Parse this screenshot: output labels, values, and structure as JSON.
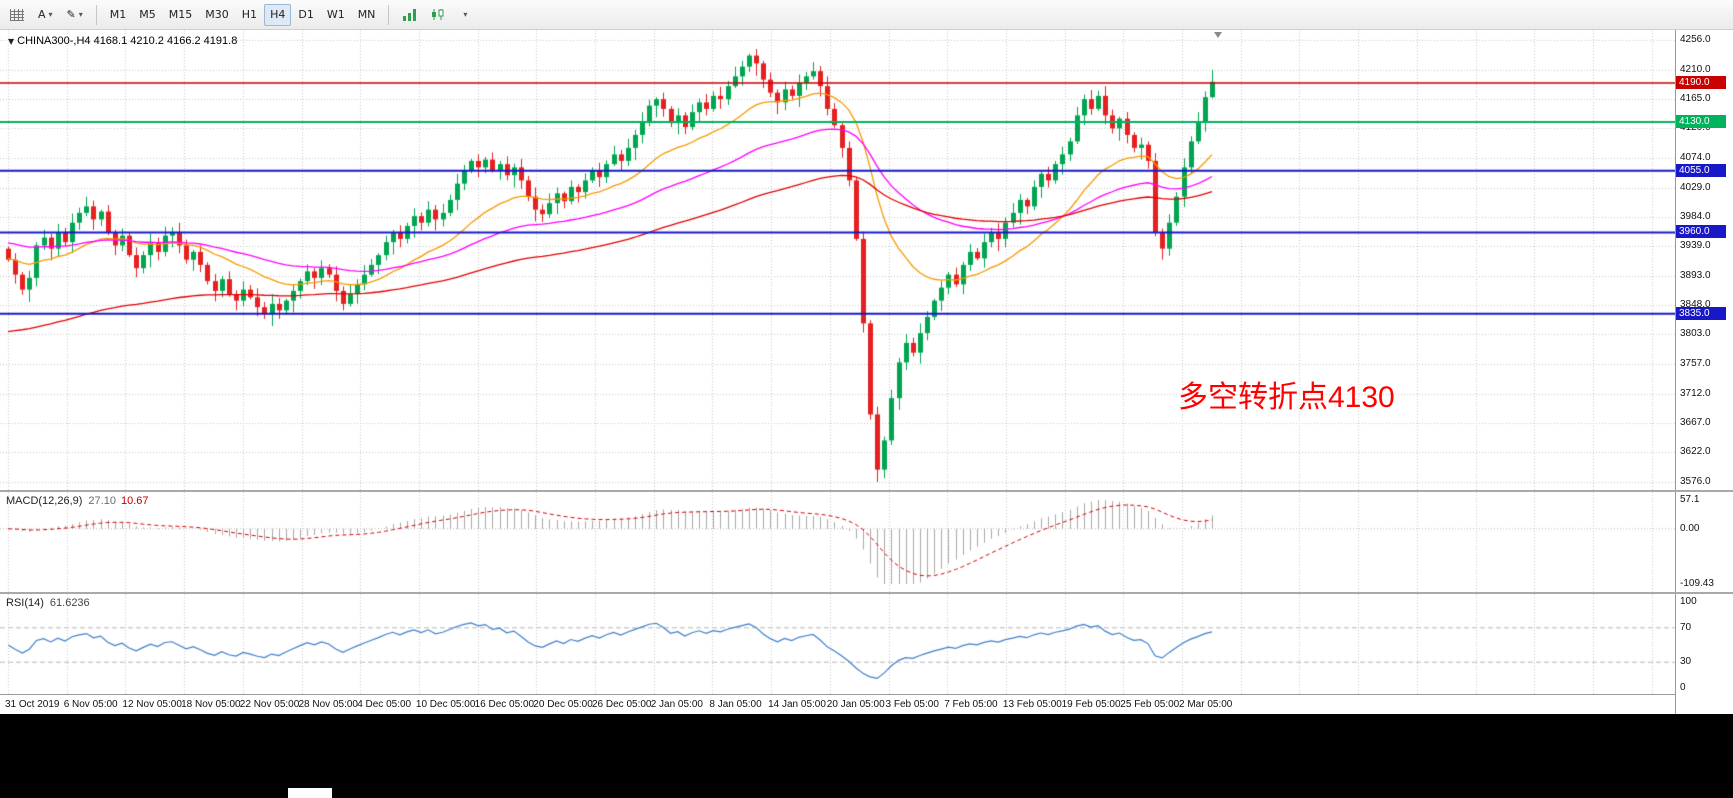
{
  "toolbar": {
    "text_tool_label": "A",
    "draw_tool_glyph": "✎",
    "timeframes": [
      "M1",
      "M5",
      "M15",
      "M30",
      "H1",
      "H4",
      "D1",
      "W1",
      "MN"
    ],
    "active_timeframe": "H4"
  },
  "chart_header": {
    "title": "CHINA300-,H4  4168.1 4210.2 4166.2 4191.8"
  },
  "annotation": {
    "text": "多空转折点4130",
    "color": "#ff0000"
  },
  "price_axis": {
    "ticks": [
      "4256.0",
      "4210.0",
      "4165.0",
      "4120.0",
      "4074.0",
      "4029.0",
      "3984.0",
      "3939.0",
      "3893.0",
      "3848.0",
      "3803.0",
      "3757.0",
      "3712.0",
      "3667.0",
      "3622.0",
      "3576.0"
    ]
  },
  "hlines": [
    {
      "value": 4190.0,
      "label": "4190.0",
      "color": "#c80000",
      "width": 1.5
    },
    {
      "value": 4130.0,
      "label": "4130.0",
      "color": "#00b25c",
      "width": 2
    },
    {
      "value": 4055.0,
      "label": "4055.0",
      "color": "#1818c8",
      "width": 2
    },
    {
      "value": 3960.0,
      "label": "3960.0",
      "color": "#1818c8",
      "width": 2
    },
    {
      "value": 3835.0,
      "label": "3835.0",
      "color": "#1818c8",
      "width": 2
    }
  ],
  "chart_data": {
    "type": "candlestick",
    "symbol": "CHINA300-",
    "timeframe": "H4",
    "last_candle": {
      "open": 4168.1,
      "high": 4210.2,
      "low": 4166.2,
      "close": 4191.8
    },
    "first_open": 3935,
    "up_color": "#00a551",
    "down_color": "#e52020",
    "price_range": {
      "max": 4256.0,
      "min": 3576.0
    },
    "closes": [
      3918,
      3895,
      3872,
      3890,
      3940,
      3952,
      3935,
      3960,
      3945,
      3975,
      3990,
      4000,
      3980,
      3992,
      3960,
      3940,
      3955,
      3925,
      3905,
      3925,
      3945,
      3930,
      3955,
      3960,
      3940,
      3918,
      3930,
      3910,
      3885,
      3870,
      3888,
      3865,
      3855,
      3872,
      3860,
      3845,
      3835,
      3850,
      3840,
      3855,
      3870,
      3885,
      3900,
      3890,
      3905,
      3895,
      3870,
      3850,
      3865,
      3880,
      3895,
      3910,
      3925,
      3945,
      3960,
      3950,
      3970,
      3985,
      3975,
      3995,
      3980,
      3990,
      4010,
      4035,
      4055,
      4070,
      4060,
      4072,
      4055,
      4065,
      4048,
      4060,
      4040,
      4015,
      3995,
      3988,
      4005,
      4020,
      4008,
      4030,
      4022,
      4040,
      4055,
      4045,
      4065,
      4080,
      4070,
      4090,
      4110,
      4130,
      4155,
      4165,
      4150,
      4128,
      4140,
      4122,
      4145,
      4160,
      4150,
      4170,
      4165,
      4185,
      4200,
      4215,
      4232,
      4220,
      4195,
      4175,
      4160,
      4180,
      4170,
      4190,
      4200,
      4208,
      4185,
      4150,
      4125,
      4090,
      4040,
      3950,
      3820,
      3680,
      3595,
      3640,
      3705,
      3760,
      3790,
      3775,
      3805,
      3830,
      3855,
      3875,
      3895,
      3880,
      3910,
      3930,
      3920,
      3945,
      3960,
      3950,
      3975,
      3990,
      4010,
      4000,
      4030,
      4050,
      4040,
      4065,
      4080,
      4100,
      4140,
      4165,
      4150,
      4170,
      4140,
      4120,
      4135,
      4110,
      4090,
      4095,
      4070,
      3960,
      3935,
      3975,
      4015,
      4060,
      4100,
      4130,
      4168,
      4191.8
    ],
    "moving_averages": [
      {
        "name": "MA20",
        "period": 20,
        "color": "#f59b00",
        "seed": 3920
      },
      {
        "name": "MA50",
        "period": 50,
        "color": "#ff00ff",
        "seed": 3945
      },
      {
        "name": "MA100",
        "period": 100,
        "color": "#e00000",
        "seed": 3805
      }
    ]
  },
  "macd": {
    "name": "MACD(12,26,9)",
    "value_main": "27.10",
    "value_signal": "10.67",
    "fast": 12,
    "slow": 26,
    "signal_period": 9,
    "scale": [
      "57.1",
      "0.00",
      "-109.43"
    ],
    "histogram_color": "#a9a9a9",
    "signal_color": "#d40000"
  },
  "rsi": {
    "name": "RSI(14)",
    "value": "61.6236",
    "period": 14,
    "scale": [
      "100",
      "70",
      "30",
      "0"
    ],
    "levels": [
      70,
      30
    ],
    "line_color": "#3e7fcb"
  },
  "time_axis": {
    "labels": [
      "31 Oct 2019",
      "6 Nov 05:00",
      "12 Nov 05:00",
      "18 Nov 05:00",
      "22 Nov 05:00",
      "28 Nov 05:00",
      "4 Dec 05:00",
      "10 Dec 05:00",
      "16 Dec 05:00",
      "20 Dec 05:00",
      "26 Dec 05:00",
      "2 Jan 05:00",
      "8 Jan 05:00",
      "14 Jan 05:00",
      "20 Jan 05:00",
      "3 Feb 05:00",
      "7 Feb 05:00",
      "13 Feb 05:00",
      "19 Feb 05:00",
      "25 Feb 05:00",
      "2 Mar 05:00"
    ]
  }
}
